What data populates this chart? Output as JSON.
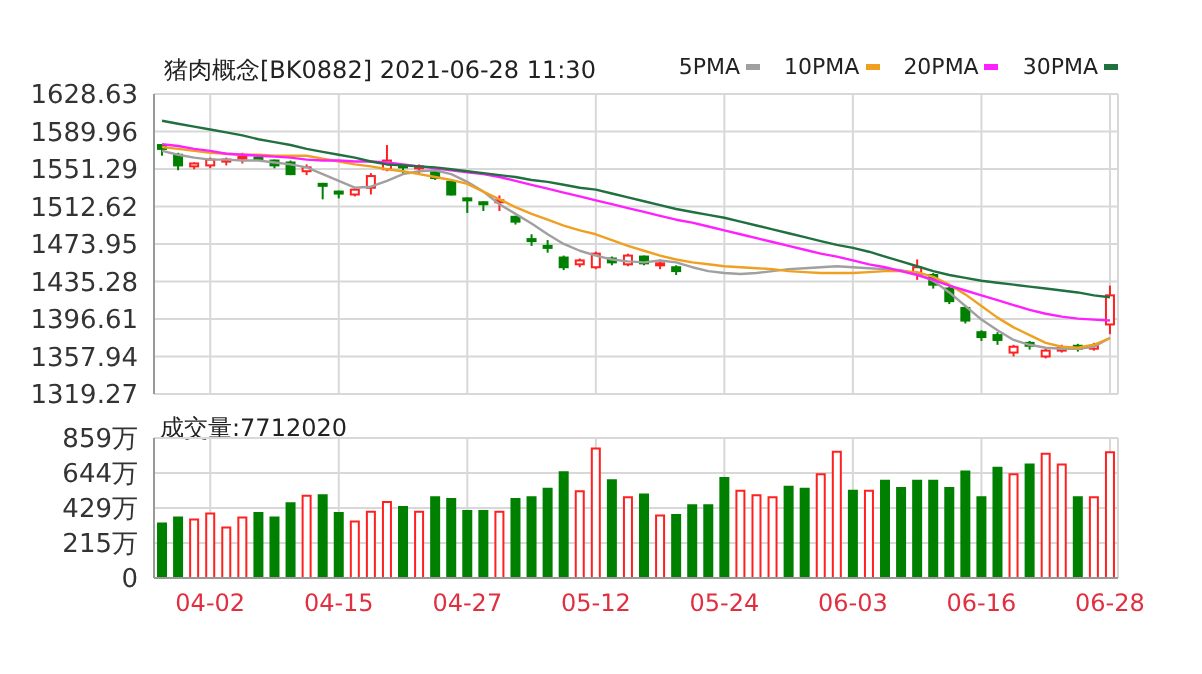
{
  "chart_data": [
    {
      "type": "candlestick",
      "title": "猪肉概念[BK0882] 2021-06-28 11:30",
      "categories": [
        null,
        null,
        null,
        null,
        null,
        null,
        null,
        null,
        null,
        null,
        null,
        null,
        null,
        null,
        null,
        null,
        null,
        null,
        null,
        null,
        null,
        null,
        null,
        null,
        null,
        null,
        null,
        null,
        null,
        null,
        null,
        null,
        null,
        null,
        null,
        null,
        null,
        null,
        null,
        null,
        null,
        null,
        null,
        null,
        null,
        null,
        null,
        null,
        null,
        null,
        null,
        null,
        null,
        null,
        null,
        null,
        null,
        null,
        null,
        null
      ],
      "ohlc": [
        [
          1576,
          1577,
          1565,
          1572
        ],
        [
          1566,
          1568,
          1550,
          1555
        ],
        [
          1554,
          1558,
          1551,
          1557
        ],
        [
          1555,
          1563,
          1552,
          1561
        ],
        [
          1560,
          1563,
          1555,
          1561
        ],
        [
          1562,
          1568,
          1557,
          1564
        ],
        [
          1563,
          1565,
          1560,
          1562
        ],
        [
          1560,
          1561,
          1552,
          1555
        ],
        [
          1558,
          1560,
          1545,
          1546
        ],
        [
          1549,
          1556,
          1545,
          1553
        ],
        [
          1536,
          1537,
          1520,
          1534
        ],
        [
          1528,
          1529,
          1521,
          1527
        ],
        [
          1525,
          1532,
          1523,
          1530
        ],
        [
          1532,
          1547,
          1525,
          1544
        ],
        [
          1551,
          1576,
          1549,
          1560
        ],
        [
          1555,
          1556,
          1546,
          1553
        ],
        [
          1553,
          1556,
          1547,
          1554
        ],
        [
          1549,
          1551,
          1540,
          1542
        ],
        [
          1538,
          1540,
          1524,
          1525
        ],
        [
          1521,
          1522,
          1506,
          1519
        ],
        [
          1517,
          1518,
          1508,
          1515
        ],
        [
          1517,
          1524,
          1508,
          1519
        ],
        [
          1502,
          1503,
          1494,
          1497
        ],
        [
          1479,
          1484,
          1472,
          1477
        ],
        [
          1472,
          1478,
          1465,
          1470
        ],
        [
          1460,
          1462,
          1447,
          1450
        ],
        [
          1453,
          1459,
          1450,
          1457
        ],
        [
          1450,
          1466,
          1448,
          1464
        ],
        [
          1459,
          1461,
          1452,
          1455
        ],
        [
          1453,
          1464,
          1451,
          1462
        ],
        [
          1461,
          1462,
          1452,
          1454
        ],
        [
          1452,
          1458,
          1448,
          1454
        ],
        [
          1450,
          1452,
          1442,
          1446
        ],
        null,
        null,
        null,
        null,
        null,
        null,
        null,
        null,
        null,
        null,
        null,
        null,
        null,
        null,
        [
          1443,
          1458,
          1437,
          1450
        ],
        [
          1442,
          1444,
          1428,
          1432
        ],
        [
          1428,
          1430,
          1412,
          1415
        ],
        [
          1408,
          1410,
          1392,
          1395
        ],
        [
          1383,
          1385,
          1374,
          1378
        ],
        [
          1380,
          1383,
          1370,
          1375
        ],
        [
          1362,
          1370,
          1358,
          1368
        ],
        [
          1372,
          1374,
          1365,
          1369
        ],
        [
          1358,
          1366,
          1356,
          1364
        ],
        [
          1364,
          1370,
          1362,
          1367
        ],
        [
          1369,
          1371,
          1363,
          1366
        ],
        [
          1366,
          1372,
          1364,
          1369
        ],
        [
          1391,
          1431,
          1381,
          1421
        ]
      ],
      "colors": [
        "#008000",
        "#008000",
        "#ff2020",
        "#ff2020",
        "#ff2020",
        "#ff2020",
        "#008000",
        "#008000",
        "#008000",
        "#ff2020",
        "#008000",
        "#008000",
        "#ff2020",
        "#ff2020",
        "#ff2020",
        "#008000",
        "#ff2020",
        "#008000",
        "#008000",
        "#008000",
        "#008000",
        "#ff2020",
        "#008000",
        "#008000",
        "#008000",
        "#008000",
        "#ff2020",
        "#ff2020",
        "#008000",
        "#ff2020",
        "#008000",
        "#ff2020",
        "#008000",
        null,
        null,
        null,
        null,
        null,
        null,
        null,
        null,
        null,
        null,
        null,
        null,
        null,
        null,
        "#ff2020",
        "#008000",
        "#008000",
        "#008000",
        "#008000",
        "#008000",
        "#ff2020",
        "#008000",
        "#ff2020",
        "#ff2020",
        "#008000",
        "#ff2020",
        "#ff2020"
      ],
      "series": [
        {
          "name": "5PMA",
          "type": "line",
          "color": "#a0a0a0",
          "values": [
            1570,
            1566,
            1563,
            1561,
            1561,
            1560,
            1560,
            1558,
            1556,
            1553,
            1546,
            1539,
            1532,
            1533,
            1539,
            1546,
            1549,
            1550,
            1546,
            1538,
            1528,
            1515,
            1505,
            1495,
            1484,
            1474,
            1467,
            1462,
            1458,
            1456,
            1455,
            1457,
            1455,
            1450,
            1446,
            1444,
            1443,
            1444,
            1446,
            1448,
            1449,
            1450,
            1451,
            1450,
            1449,
            1448,
            1447,
            1443,
            1436,
            1424,
            1410,
            1396,
            1385,
            1375,
            1370,
            1367,
            1366,
            1366,
            1368,
            1377
          ]
        },
        {
          "name": "10PMA",
          "type": "line",
          "color": "#f0a020",
          "values": [
            1574,
            1572,
            1570,
            1568,
            1567,
            1566,
            1566,
            1565,
            1565,
            1565,
            1562,
            1559,
            1556,
            1554,
            1551,
            1549,
            1546,
            1543,
            1540,
            1536,
            1528,
            1520,
            1512,
            1505,
            1499,
            1493,
            1488,
            1484,
            1478,
            1472,
            1467,
            1462,
            1458,
            1455,
            1453,
            1451,
            1450,
            1449,
            1448,
            1446,
            1445,
            1444,
            1444,
            1444,
            1445,
            1446,
            1446,
            1445,
            1440,
            1432,
            1422,
            1410,
            1398,
            1388,
            1380,
            1372,
            1368,
            1367,
            1370,
            1377
          ]
        },
        {
          "name": "20PMA",
          "type": "line",
          "color": "#ff20ff",
          "values": [
            1577,
            1575,
            1572,
            1570,
            1567,
            1566,
            1565,
            1564,
            1563,
            1561,
            1560,
            1560,
            1559,
            1559,
            1558,
            1556,
            1554,
            1552,
            1550,
            1548,
            1546,
            1543,
            1539,
            1535,
            1531,
            1527,
            1523,
            1519,
            1515,
            1511,
            1507,
            1503,
            1499,
            1496,
            1492,
            1488,
            1484,
            1480,
            1476,
            1472,
            1468,
            1464,
            1461,
            1457,
            1453,
            1450,
            1446,
            1442,
            1437,
            1431,
            1426,
            1421,
            1416,
            1411,
            1406,
            1402,
            1399,
            1397,
            1396,
            1395
          ]
        },
        {
          "name": "30PMA",
          "type": "line",
          "color": "#207040",
          "values": [
            1601,
            1598,
            1595,
            1592,
            1589,
            1586,
            1582,
            1579,
            1576,
            1572,
            1569,
            1566,
            1563,
            1559,
            1556,
            1555,
            1554,
            1553,
            1551,
            1549,
            1547,
            1545,
            1543,
            1540,
            1538,
            1535,
            1532,
            1530,
            1526,
            1522,
            1518,
            1514,
            1510,
            1507,
            1504,
            1501,
            1497,
            1493,
            1489,
            1485,
            1481,
            1477,
            1473,
            1470,
            1466,
            1461,
            1456,
            1451,
            1446,
            1442,
            1439,
            1436,
            1434,
            1432,
            1430,
            1428,
            1426,
            1424,
            1421,
            1419
          ]
        }
      ],
      "ylim": [
        1319.27,
        1628.63
      ],
      "yticks": [
        1319.27,
        1357.94,
        1396.61,
        1435.28,
        1473.95,
        1512.62,
        1551.29,
        1589.96,
        1628.63
      ],
      "grid": true,
      "legend": "top right",
      "marker": "none",
      "tick_labels": "y"
    },
    {
      "type": "bar",
      "title": "成交量:7712020",
      "categories": [
        null,
        null,
        null,
        "04-02",
        null,
        null,
        null,
        null,
        null,
        null,
        null,
        "04-15",
        null,
        null,
        null,
        null,
        null,
        null,
        null,
        "04-27",
        null,
        null,
        null,
        null,
        null,
        null,
        null,
        "05-12",
        null,
        null,
        null,
        null,
        null,
        null,
        null,
        "05-24",
        null,
        null,
        null,
        null,
        null,
        null,
        null,
        "06-03",
        null,
        null,
        null,
        null,
        null,
        null,
        null,
        "06-16",
        null,
        null,
        null,
        null,
        null,
        null,
        null,
        "06-28"
      ],
      "values": [
        335,
        371,
        359,
        395,
        310,
        371,
        399,
        371,
        459,
        504,
        508,
        399,
        347,
        407,
        467,
        435,
        407,
        496,
        484,
        411,
        411,
        407,
        484,
        496,
        548,
        649,
        532,
        794,
        600,
        496,
        512,
        383,
        387,
        447,
        447,
        613,
        536,
        508,
        496,
        560,
        548,
        637,
        774,
        536,
        536,
        596,
        552,
        596,
        596,
        552,
        653,
        496,
        677,
        637,
        697,
        762,
        697,
        496,
        496,
        771
      ],
      "colors": [
        "#008000",
        "#008000",
        "#ff2020",
        "#ff2020",
        "#ff2020",
        "#ff2020",
        "#008000",
        "#008000",
        "#008000",
        "#ff2020",
        "#008000",
        "#008000",
        "#ff2020",
        "#ff2020",
        "#ff2020",
        "#008000",
        "#ff2020",
        "#008000",
        "#008000",
        "#008000",
        "#008000",
        "#ff2020",
        "#008000",
        "#008000",
        "#008000",
        "#008000",
        "#ff2020",
        "#ff2020",
        "#008000",
        "#ff2020",
        "#008000",
        "#ff2020",
        "#008000",
        "#008000",
        "#008000",
        "#008000",
        "#ff2020",
        "#ff2020",
        "#ff2020",
        "#008000",
        "#008000",
        "#ff2020",
        "#ff2020",
        "#008000",
        "#ff2020",
        "#008000",
        "#008000",
        "#008000",
        "#008000",
        "#008000",
        "#008000",
        "#008000",
        "#008000",
        "#ff2020",
        "#008000",
        "#ff2020",
        "#ff2020",
        "#008000",
        "#ff2020",
        "#ff2020"
      ],
      "ylim": [
        0,
        859
      ],
      "yticks": [
        0,
        {
          "value": 214.75,
          "label": "215万"
        },
        {
          "value": 429.5,
          "label": "429万"
        },
        {
          "value": 644.25,
          "label": "644万"
        },
        {
          "value": 859,
          "label": "859万"
        }
      ],
      "grid": true
    }
  ]
}
